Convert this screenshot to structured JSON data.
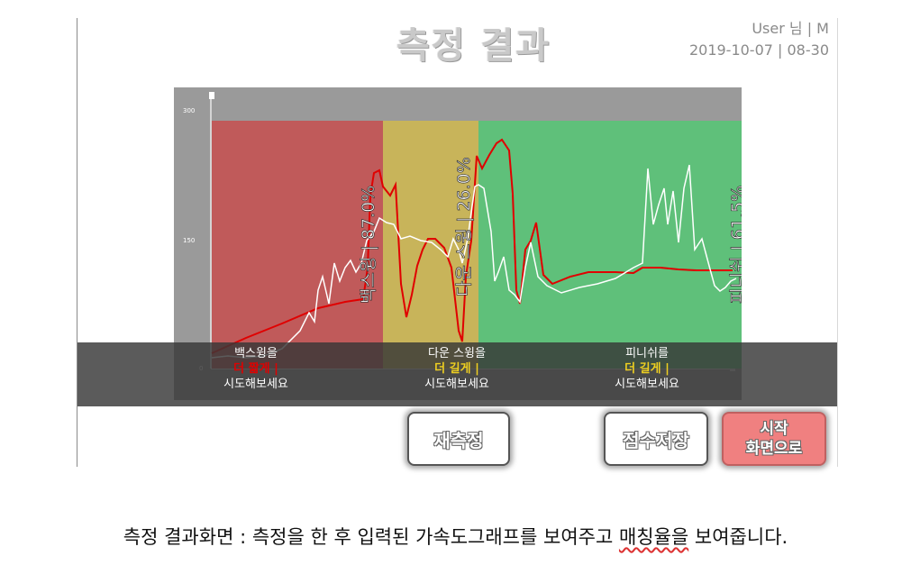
{
  "header": {
    "title": "측정 결과",
    "user_line": "User 님 | M",
    "datetime_line": "2019-10-07 | 08-30"
  },
  "chart_data": {
    "type": "line",
    "y_ticks": [
      "300",
      "150",
      "0"
    ],
    "ylim": [
      0,
      300
    ],
    "zones": [
      {
        "name": "백스윙",
        "label": "백스윙 | 87.0%",
        "color": "#c05a5a"
      },
      {
        "name": "다운 스윙",
        "label": "다운 스윙 | 26.0%",
        "color": "#c8b45a"
      },
      {
        "name": "피니쉬",
        "label": "피니쉬 | 61.5%",
        "color": "#5fc07a"
      }
    ],
    "series": [
      {
        "color": "#e00000"
      },
      {
        "color": "#ffffff"
      }
    ]
  },
  "advice": [
    {
      "line1": "백스윙을",
      "line2": "더 짧게 |",
      "line3": "시도해보세요",
      "tone": "red"
    },
    {
      "line1": "다운 스윙을",
      "line2": "더 길게 |",
      "line3": "시도해보세요",
      "tone": "yellow"
    },
    {
      "line1": "피니쉬를",
      "line2": "더 길게 |",
      "line3": "시도해보세요",
      "tone": "yellow"
    }
  ],
  "buttons": {
    "remeasure": "재측정",
    "save_score": "점수저장",
    "home_line1": "시작",
    "home_line2": "화면으로"
  },
  "caption": {
    "prefix": "측정 결과화면 : 측정을 한 후 입력된 가속도그래프를 보여주고 ",
    "underlined": "매칭율을",
    "suffix": " 보여줍니다."
  }
}
